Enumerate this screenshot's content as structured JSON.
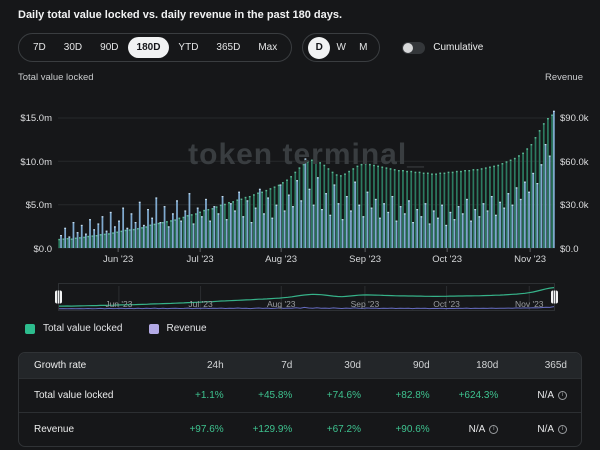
{
  "title": "Daily total value locked vs. daily revenue in the past 180 days.",
  "controls": {
    "ranges": [
      "7D",
      "30D",
      "90D",
      "180D",
      "YTD",
      "365D",
      "Max"
    ],
    "selected_range": "180D",
    "granularities": [
      "D",
      "W",
      "M"
    ],
    "selected_granularity": "D",
    "cumulative_label": "Cumulative",
    "cumulative_on": false
  },
  "axes": {
    "left_title": "Total value locked",
    "right_title": "Revenue",
    "left_ticks": [
      "$15.0m",
      "$10.0m",
      "$5.0m",
      "$0.0"
    ],
    "right_ticks": [
      "$90.0k",
      "$60.0k",
      "$30.0k",
      "$0.0"
    ],
    "x_ticks": [
      "Jun '23",
      "Jul '23",
      "Aug '23",
      "Sep '23",
      "Oct '23",
      "Nov '23"
    ]
  },
  "watermark": "token terminal_",
  "legend": [
    {
      "label": "Total value locked",
      "color": "#2dbd8e"
    },
    {
      "label": "Revenue",
      "color": "#b3aae6"
    }
  ],
  "minimap": {
    "x_labels": [
      "Jun '23",
      "Jul '23",
      "Aug '23",
      "Sep '23",
      "Oct '23",
      "Nov '23"
    ]
  },
  "chart_data": {
    "type": "bar",
    "title": "Daily total value locked vs. daily revenue in the past 180 days.",
    "x_start": "May '23",
    "x_end": "Nov '23",
    "x_tick_labels": [
      "Jun '23",
      "Jul '23",
      "Aug '23",
      "Sep '23",
      "Oct '23",
      "Nov '23"
    ],
    "grid": true,
    "legend_position": "bottom",
    "series": [
      {
        "name": "Total value locked",
        "axis": "left",
        "unit": "$m",
        "ylim": [
          0,
          15
        ],
        "color": "#2c7a60",
        "values": [
          1.05,
          1.1,
          1.15,
          1.1,
          1.2,
          1.25,
          1.3,
          1.4,
          1.45,
          1.5,
          1.6,
          1.65,
          1.7,
          1.8,
          1.9,
          2.0,
          2.1,
          2.15,
          2.2,
          2.3,
          2.4,
          2.5,
          2.7,
          2.8,
          2.9,
          3.0,
          3.1,
          3.2,
          3.3,
          3.5,
          3.6,
          3.8,
          3.9,
          4.0,
          4.2,
          4.4,
          4.5,
          4.6,
          4.8,
          5.0,
          5.1,
          5.3,
          5.4,
          5.6,
          5.7,
          5.9,
          6.0,
          6.2,
          6.4,
          6.5,
          6.7,
          6.9,
          7.1,
          7.3,
          7.6,
          7.9,
          8.3,
          8.8,
          9.3,
          9.7,
          10.0,
          10.2,
          10.1,
          9.9,
          9.6,
          9.2,
          8.8,
          8.5,
          8.4,
          8.6,
          8.9,
          9.2,
          9.5,
          9.7,
          9.8,
          9.7,
          9.6,
          9.5,
          9.4,
          9.3,
          9.2,
          9.1,
          9.0,
          9.0,
          8.9,
          8.9,
          8.8,
          8.8,
          8.7,
          8.7,
          8.6,
          8.6,
          8.7,
          8.7,
          8.8,
          8.8,
          8.9,
          8.9,
          9.0,
          9.0,
          9.1,
          9.1,
          9.2,
          9.3,
          9.4,
          9.5,
          9.6,
          9.8,
          10.0,
          10.2,
          10.4,
          10.7,
          11.0,
          11.5,
          12.0,
          12.8,
          13.6,
          14.4,
          15.0,
          15.4
        ]
      },
      {
        "name": "Revenue",
        "axis": "right",
        "unit": "$k",
        "ylim": [
          0,
          90
        ],
        "color": "#7fa9cf",
        "values": [
          9,
          14,
          8,
          18,
          11,
          16,
          10,
          20,
          13,
          17,
          22,
          12,
          25,
          15,
          19,
          28,
          14,
          24,
          18,
          32,
          16,
          27,
          21,
          35,
          18,
          29,
          15,
          24,
          33,
          19,
          26,
          38,
          17,
          28,
          22,
          34,
          19,
          29,
          24,
          36,
          20,
          31,
          26,
          39,
          22,
          33,
          18,
          28,
          41,
          24,
          35,
          21,
          30,
          44,
          26,
          37,
          29,
          47,
          33,
          62,
          41,
          30,
          49,
          27,
          38,
          23,
          44,
          31,
          20,
          36,
          26,
          46,
          30,
          22,
          39,
          28,
          34,
          21,
          31,
          25,
          36,
          19,
          29,
          24,
          33,
          18,
          27,
          22,
          31,
          17,
          26,
          21,
          30,
          16,
          25,
          20,
          29,
          24,
          34,
          19,
          27,
          22,
          31,
          26,
          36,
          23,
          32,
          28,
          38,
          30,
          42,
          34,
          46,
          39,
          52,
          45,
          58,
          72,
          64,
          95
        ]
      }
    ]
  },
  "table": {
    "headers": [
      "Growth rate",
      "24h",
      "7d",
      "30d",
      "90d",
      "180d",
      "365d"
    ],
    "rows": [
      {
        "label": "Total value locked",
        "values": [
          "+1.1%",
          "+45.8%",
          "+74.6%",
          "+82.8%",
          "+624.3%",
          "N/A"
        ]
      },
      {
        "label": "Revenue",
        "values": [
          "+97.6%",
          "+129.9%",
          "+67.2%",
          "+90.6%",
          "N/A",
          "N/A"
        ]
      }
    ]
  }
}
